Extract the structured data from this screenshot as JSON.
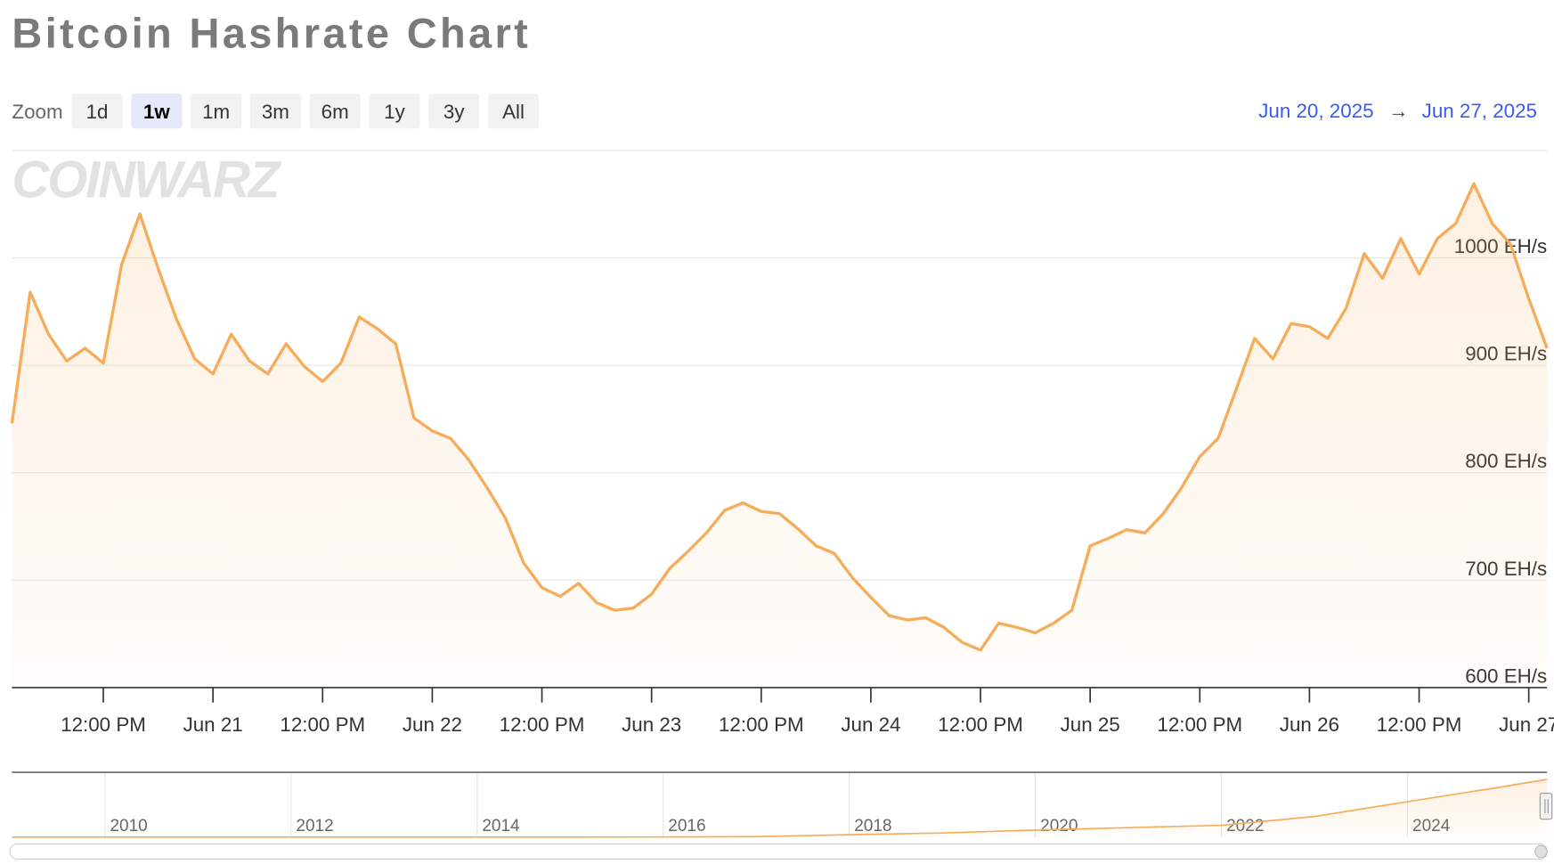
{
  "chart_data": [
    {
      "type": "area",
      "title": "Bitcoin Hashrate Chart",
      "color": "#f6ad5b",
      "grid": true,
      "x": [
        "2025-06-20 02:00",
        "2025-06-20 04:00",
        "2025-06-20 06:00",
        "2025-06-20 08:00",
        "2025-06-20 10:00",
        "2025-06-20 12:00",
        "2025-06-20 14:00",
        "2025-06-20 16:00",
        "2025-06-20 18:00",
        "2025-06-20 20:00",
        "2025-06-20 22:00",
        "2025-06-21 00:00",
        "2025-06-21 02:00",
        "2025-06-21 04:00",
        "2025-06-21 06:00",
        "2025-06-21 08:00",
        "2025-06-21 10:00",
        "2025-06-21 12:00",
        "2025-06-21 14:00",
        "2025-06-21 16:00",
        "2025-06-21 18:00",
        "2025-06-21 20:00",
        "2025-06-21 22:00",
        "2025-06-22 00:00",
        "2025-06-22 02:00",
        "2025-06-22 04:00",
        "2025-06-22 06:00",
        "2025-06-22 08:00",
        "2025-06-22 10:00",
        "2025-06-22 12:00",
        "2025-06-22 14:00",
        "2025-06-22 16:00",
        "2025-06-22 18:00",
        "2025-06-22 20:00",
        "2025-06-22 22:00",
        "2025-06-23 00:00",
        "2025-06-23 02:00",
        "2025-06-23 04:00",
        "2025-06-23 06:00",
        "2025-06-23 08:00",
        "2025-06-23 10:00",
        "2025-06-23 12:00",
        "2025-06-23 14:00",
        "2025-06-23 16:00",
        "2025-06-23 18:00",
        "2025-06-23 20:00",
        "2025-06-23 22:00",
        "2025-06-24 00:00",
        "2025-06-24 02:00",
        "2025-06-24 04:00",
        "2025-06-24 06:00",
        "2025-06-24 08:00",
        "2025-06-24 10:00",
        "2025-06-24 12:00",
        "2025-06-24 14:00",
        "2025-06-24 16:00",
        "2025-06-24 18:00",
        "2025-06-24 20:00",
        "2025-06-24 22:00",
        "2025-06-25 00:00",
        "2025-06-25 02:00",
        "2025-06-25 04:00",
        "2025-06-25 06:00",
        "2025-06-25 08:00",
        "2025-06-25 10:00",
        "2025-06-25 12:00",
        "2025-06-25 14:00",
        "2025-06-25 16:00",
        "2025-06-25 18:00",
        "2025-06-25 20:00",
        "2025-06-25 22:00",
        "2025-06-26 00:00",
        "2025-06-26 02:00",
        "2025-06-26 04:00",
        "2025-06-26 06:00",
        "2025-06-26 08:00",
        "2025-06-26 10:00",
        "2025-06-26 12:00",
        "2025-06-26 14:00",
        "2025-06-26 16:00",
        "2025-06-26 18:00",
        "2025-06-26 20:00",
        "2025-06-26 22:00",
        "2025-06-27 00:00",
        "2025-06-27 02:00"
      ],
      "values": [
        846,
        968,
        929,
        904,
        916,
        902,
        994,
        1041,
        990,
        943,
        906,
        892,
        929,
        904,
        892,
        920,
        899,
        885,
        902,
        945,
        934,
        920,
        851,
        839,
        832,
        812,
        786,
        758,
        716,
        693,
        685,
        697,
        679,
        672,
        674,
        687,
        711,
        727,
        744,
        765,
        772,
        764,
        762,
        748,
        732,
        725,
        702,
        684,
        667,
        663,
        665,
        656,
        642,
        635,
        660,
        656,
        651,
        660,
        672,
        732,
        739,
        747,
        744,
        762,
        786,
        815,
        832,
        878,
        925,
        906,
        939,
        936,
        925,
        953,
        1004,
        981,
        1018,
        985,
        1018,
        1032,
        1069,
        1032,
        1013,
        962,
        916
      ],
      "xlim": [
        "2025-06-20 02:00",
        "2025-06-27 02:00"
      ],
      "xticks": [
        {
          "value": "2025-06-20 12:00",
          "label": "12:00 PM"
        },
        {
          "value": "2025-06-21 00:00",
          "label": "Jun 21"
        },
        {
          "value": "2025-06-21 12:00",
          "label": "12:00 PM"
        },
        {
          "value": "2025-06-22 00:00",
          "label": "Jun 22"
        },
        {
          "value": "2025-06-22 12:00",
          "label": "12:00 PM"
        },
        {
          "value": "2025-06-23 00:00",
          "label": "Jun 23"
        },
        {
          "value": "2025-06-23 12:00",
          "label": "12:00 PM"
        },
        {
          "value": "2025-06-24 00:00",
          "label": "Jun 24"
        },
        {
          "value": "2025-06-24 12:00",
          "label": "12:00 PM"
        },
        {
          "value": "2025-06-25 00:00",
          "label": "Jun 25"
        },
        {
          "value": "2025-06-25 12:00",
          "label": "12:00 PM"
        },
        {
          "value": "2025-06-26 00:00",
          "label": "Jun 26"
        },
        {
          "value": "2025-06-26 12:00",
          "label": "12:00 PM"
        },
        {
          "value": "2025-06-27 00:00",
          "label": "Jun 27"
        }
      ],
      "ylim": [
        600,
        1100
      ],
      "yticks": [
        {
          "value": 600,
          "label": "600 EH/s"
        },
        {
          "value": 700,
          "label": "700 EH/s"
        },
        {
          "value": 800,
          "label": "800 EH/s"
        },
        {
          "value": 900,
          "label": "900 EH/s"
        },
        {
          "value": 1000,
          "label": "1000 EH/s"
        }
      ]
    },
    {
      "type": "area",
      "color": "#f6ad5b",
      "grid": true,
      "x": [
        2009,
        2010,
        2011,
        2012,
        2013,
        2014,
        2015,
        2016,
        2017,
        2018,
        2019,
        2020,
        2021,
        2022,
        2023,
        2024,
        2025,
        2025.5
      ],
      "values": [
        0,
        0,
        0,
        0,
        0,
        0.1,
        0.4,
        1.5,
        8,
        40,
        70,
        120,
        160,
        200,
        350,
        600,
        850,
        980
      ],
      "xlim": [
        2009,
        2025.5
      ],
      "ylim": [
        0,
        1100
      ],
      "xticks": [
        2010,
        2012,
        2014,
        2016,
        2018,
        2020,
        2022,
        2024
      ]
    }
  ],
  "zoom": {
    "label": "Zoom",
    "buttons": [
      "1d",
      "1w",
      "1m",
      "3m",
      "6m",
      "1y",
      "3y",
      "All"
    ],
    "selected": 1
  },
  "range": {
    "from": "Jun 20, 2025",
    "to": "Jun 27, 2025"
  },
  "watermark": "COINWARZ"
}
